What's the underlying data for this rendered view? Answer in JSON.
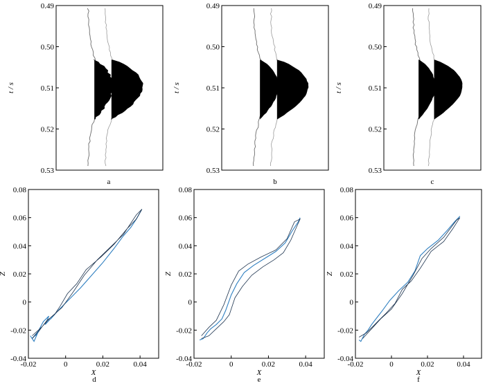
{
  "figure": {
    "panel_labels": [
      "a",
      "b",
      "c",
      "d",
      "e",
      "f"
    ]
  },
  "chart_data": [
    {
      "type": "image",
      "panel": "a",
      "ylabel": "t / s",
      "ylim": [
        0.49,
        0.53
      ],
      "yticks": [
        "0.49",
        "0.50",
        "0.51",
        "0.52",
        "0.53"
      ],
      "inverted_y": true
    },
    {
      "type": "image",
      "panel": "b",
      "ylabel": "t / s",
      "ylim": [
        0.49,
        0.53
      ],
      "yticks": [
        "0.49",
        "0.50",
        "0.51",
        "0.52",
        "0.53"
      ],
      "inverted_y": true
    },
    {
      "type": "image",
      "panel": "c",
      "ylabel": "t / s",
      "ylim": [
        0.49,
        0.53
      ],
      "yticks": [
        "0.49",
        "0.50",
        "0.51",
        "0.52",
        "0.53"
      ],
      "inverted_y": true
    },
    {
      "type": "line",
      "panel": "d",
      "xlabel": "X",
      "ylabel": "Z",
      "xlim": [
        -0.02,
        0.05
      ],
      "ylim": [
        -0.04,
        0.08
      ],
      "xticks": [
        "-0.02",
        "0",
        "0.02",
        "0.04"
      ],
      "yticks": [
        "-0.04",
        "-0.02",
        "0",
        "0.02",
        "0.04",
        "0.06",
        "0.08"
      ],
      "series": [
        {
          "color": "#2f7fc0",
          "x": [
            -0.019,
            -0.017,
            -0.015,
            -0.018,
            -0.013,
            -0.016,
            -0.012,
            -0.009,
            -0.011,
            -0.006,
            -0.008,
            -0.004,
            0.002,
            0.008,
            0.014,
            0.02,
            0.026,
            0.031,
            0.035,
            0.038,
            0.041
          ],
          "y": [
            -0.024,
            -0.028,
            -0.022,
            -0.026,
            -0.018,
            -0.024,
            -0.014,
            -0.01,
            -0.016,
            -0.009,
            -0.012,
            -0.006,
            0.002,
            0.01,
            0.019,
            0.028,
            0.038,
            0.047,
            0.053,
            0.059,
            0.066
          ]
        },
        {
          "color": "#1f3550",
          "x": [
            -0.018,
            -0.014,
            -0.01,
            -0.006,
            -0.003,
            0.001,
            0.006,
            0.011,
            0.019,
            0.026,
            0.033,
            0.038,
            0.041,
            0.038,
            0.031,
            0.024,
            0.017,
            0.01,
            0.004,
            -0.002,
            -0.008,
            -0.013,
            -0.018
          ],
          "y": [
            -0.026,
            -0.02,
            -0.013,
            -0.009,
            -0.003,
            0.006,
            0.013,
            0.023,
            0.032,
            0.041,
            0.052,
            0.059,
            0.066,
            0.062,
            0.048,
            0.039,
            0.03,
            0.019,
            0.007,
            -0.004,
            -0.011,
            -0.018,
            -0.024
          ]
        }
      ]
    },
    {
      "type": "line",
      "panel": "e",
      "xlabel": "X",
      "ylabel": "Z",
      "xlim": [
        -0.02,
        0.05
      ],
      "ylim": [
        -0.04,
        0.08
      ],
      "xticks": [
        "-0.02",
        "0",
        "0.02",
        "0.04"
      ],
      "yticks": [
        "-0.04",
        "-0.02",
        "0",
        "0.02",
        "0.04",
        "0.06",
        "0.08"
      ],
      "series": [
        {
          "color": "#2f7fc0",
          "x": [
            -0.017,
            -0.015,
            -0.013,
            -0.011,
            -0.008,
            -0.005,
            -0.003,
            0.0,
            0.003,
            0.007,
            0.012,
            0.018,
            0.024,
            0.029,
            0.033,
            0.036,
            0.037
          ],
          "y": [
            -0.027,
            -0.026,
            -0.022,
            -0.019,
            -0.016,
            -0.012,
            -0.006,
            0.005,
            0.013,
            0.021,
            0.026,
            0.031,
            0.036,
            0.042,
            0.051,
            0.057,
            0.06
          ]
        },
        {
          "color": "#1f3550",
          "x": [
            -0.016,
            -0.012,
            -0.008,
            -0.004,
            -0.001,
            0.002,
            0.006,
            0.011,
            0.017,
            0.023,
            0.028,
            0.032,
            0.035,
            0.037,
            0.034,
            0.03,
            0.024,
            0.016,
            0.009,
            0.004,
            0.0,
            -0.004,
            -0.008,
            -0.012,
            -0.016
          ],
          "y": [
            -0.026,
            -0.024,
            -0.019,
            -0.014,
            -0.009,
            0.003,
            0.011,
            0.019,
            0.025,
            0.03,
            0.035,
            0.044,
            0.053,
            0.059,
            0.057,
            0.045,
            0.037,
            0.032,
            0.027,
            0.022,
            0.012,
            -0.002,
            -0.013,
            -0.018,
            -0.024
          ]
        }
      ]
    },
    {
      "type": "line",
      "panel": "f",
      "xlabel": "X",
      "ylabel": "Z",
      "xlim": [
        -0.02,
        0.05
      ],
      "ylim": [
        -0.04,
        0.08
      ],
      "xticks": [
        "-0.02",
        "0",
        "0.02",
        "0.04"
      ],
      "yticks": [
        "-0.04",
        "-0.02",
        "0",
        "0.02",
        "0.04",
        "0.06",
        "0.08"
      ],
      "series": [
        {
          "color": "#2f7fc0",
          "x": [
            -0.018,
            -0.017,
            -0.015,
            -0.013,
            -0.011,
            -0.008,
            -0.005,
            -0.001,
            0.004,
            0.009,
            0.013,
            0.016,
            0.02,
            0.026,
            0.031,
            0.035,
            0.038
          ],
          "y": [
            -0.027,
            -0.028,
            -0.023,
            -0.02,
            -0.016,
            -0.011,
            -0.006,
            0.001,
            0.008,
            0.014,
            0.022,
            0.033,
            0.038,
            0.044,
            0.051,
            0.057,
            0.061
          ]
        },
        {
          "color": "#1f3550",
          "x": [
            -0.018,
            -0.014,
            -0.01,
            -0.007,
            -0.003,
            0.002,
            0.006,
            0.011,
            0.016,
            0.022,
            0.029,
            0.034,
            0.038,
            0.036,
            0.029,
            0.022,
            0.017,
            0.012,
            0.006,
            0.0,
            -0.006,
            -0.011,
            -0.016
          ],
          "y": [
            -0.025,
            -0.022,
            -0.017,
            -0.013,
            -0.008,
            -0.001,
            0.009,
            0.015,
            0.024,
            0.036,
            0.043,
            0.052,
            0.06,
            0.058,
            0.046,
            0.038,
            0.031,
            0.019,
            0.006,
            -0.005,
            -0.012,
            -0.019,
            -0.026
          ]
        }
      ]
    }
  ]
}
